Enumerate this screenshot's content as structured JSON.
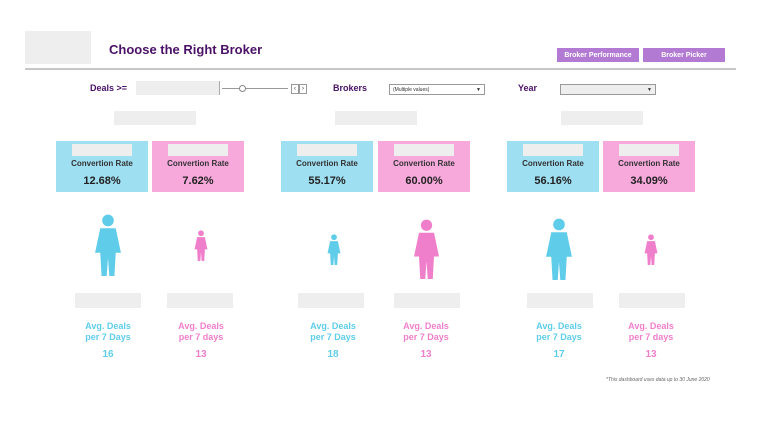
{
  "header": {
    "title": "Choose the Right Broker",
    "buttons": [
      "Broker Performance",
      "Broker Picker"
    ]
  },
  "filters": {
    "deals_label": "Deals >=",
    "brokers_label": "Brokers",
    "brokers_value": "(Multiple values)",
    "year_label": "Year"
  },
  "groups": [
    {
      "male": {
        "label": "Convertion Rate",
        "rate": "12.68%",
        "avg_label_1": "Avg. Deals",
        "avg_label_2": "per 7 Days",
        "avg": "16"
      },
      "female": {
        "label": "Convertion Rate",
        "rate": "7.62%",
        "avg_label_1": "Avg. Deals",
        "avg_label_2": "per 7 days",
        "avg": "13"
      }
    },
    {
      "male": {
        "label": "Convertion Rate",
        "rate": "55.17%",
        "avg_label_1": "Avg. Deals",
        "avg_label_2": "per 7 Days",
        "avg": "18"
      },
      "female": {
        "label": "Convertion Rate",
        "rate": "60.00%",
        "avg_label_1": "Avg. Deals",
        "avg_label_2": "per 7 Days",
        "avg": "13"
      }
    },
    {
      "male": {
        "label": "Convertion Rate",
        "rate": "56.16%",
        "avg_label_1": "Avg. Deals",
        "avg_label_2": "per 7 Days",
        "avg": "17"
      },
      "female": {
        "label": "Convertion Rate",
        "rate": "34.09%",
        "avg_label_1": "Avg. Deals",
        "avg_label_2": "per 7 days",
        "avg": "13"
      }
    }
  ],
  "footnote": "*This dashboard uses data up to 30 June 2020",
  "colors": {
    "blue": "#9fdff2",
    "pink": "#f7a9dc",
    "blue_text": "#5fcde9",
    "pink_text": "#f07fcb",
    "title": "#4a1166",
    "button": "#b27ad2"
  },
  "icons": {
    "figure_blue": "person-icon",
    "figure_pink": "person-icon"
  }
}
